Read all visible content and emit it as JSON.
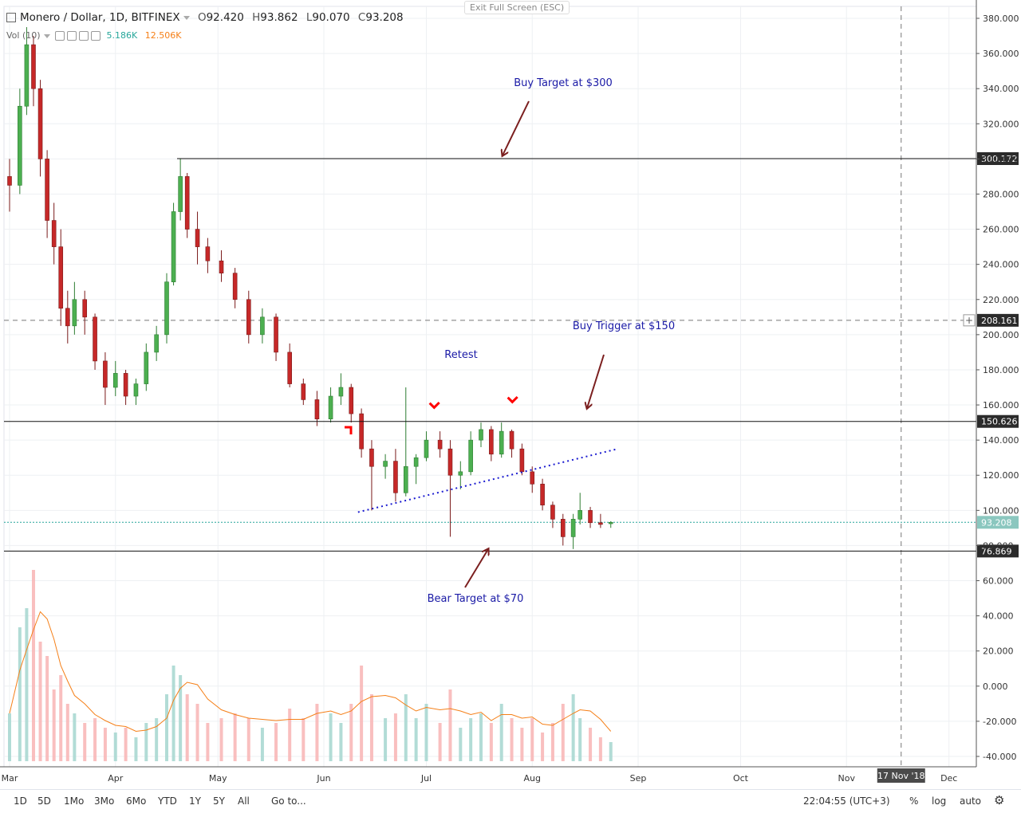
{
  "header": {
    "symbol": "Monero / Dollar, 1D, BITFINEX",
    "open_label": "O",
    "open": "92.420",
    "high_label": "H",
    "high": "93.862",
    "low_label": "L",
    "low": "90.070",
    "close_label": "C",
    "close": "93.208",
    "exit_fullscreen": "Exit Full Screen (ESC)"
  },
  "volume_legend": {
    "label": "Vol (10)",
    "v1": "5.186K",
    "v2": "12.506K"
  },
  "toolbar": {
    "ranges": [
      "1D",
      "5D",
      "1Mo",
      "3Mo",
      "6Mo",
      "YTD",
      "1Y",
      "5Y",
      "All"
    ],
    "goto": "Go to...",
    "time": "22:04:55 (UTC+3)",
    "percent": "%",
    "log": "log",
    "auto": "auto",
    "settings_icon": "gear-icon"
  },
  "colors": {
    "up": "#26a69a",
    "down": "#ef5350",
    "annotation": "#1a1aa6",
    "arrow": "#7b1f1f",
    "marker": "#ff0000",
    "volma": "#f57f17"
  },
  "chart_data": {
    "type": "candlestick",
    "title": "Monero / Dollar, 1D, BITFINEX",
    "ylim": [
      -40,
      380
    ],
    "y_ticks": [
      "380.000",
      "360.000",
      "340.000",
      "320.000",
      "300.000",
      "280.000",
      "260.000",
      "240.000",
      "220.000",
      "200.000",
      "180.000",
      "160.000",
      "140.000",
      "120.000",
      "100.000",
      "80.000",
      "60.000",
      "40.000",
      "20.000",
      "0.000",
      "-20.000",
      "-40.000"
    ],
    "x_ticks": [
      "Mar",
      "Apr",
      "May",
      "Jun",
      "Jul",
      "Aug",
      "Sep",
      "Oct",
      "Nov",
      "Dec"
    ],
    "cursor_date": "17 Nov '18",
    "price_labels": [
      {
        "value": 300.172,
        "text": "300.172",
        "style": "dark"
      },
      {
        "value": 208.161,
        "text": "208.161",
        "style": "dark"
      },
      {
        "value": 150.626,
        "text": "150.626",
        "style": "dark"
      },
      {
        "value": 93.208,
        "text": "93.208",
        "style": "green"
      },
      {
        "value": 76.869,
        "text": "76.869",
        "style": "dark"
      }
    ],
    "horizontal_levels": [
      300.172,
      150.626,
      76.869
    ],
    "crosshair_price": 208.161,
    "last_price": 93.208,
    "annotations": [
      {
        "text": "Buy Target at $300"
      },
      {
        "text": "Buy Trigger at $150"
      },
      {
        "text": "Retest"
      },
      {
        "text": "Bear Target at $70"
      }
    ],
    "trendline": {
      "start": [
        "2018-06-11",
        99
      ],
      "end": [
        "2018-08-26",
        135
      ]
    },
    "series": [
      {
        "date": "2018-03-01",
        "o": 290,
        "h": 300,
        "l": 270,
        "c": 285
      },
      {
        "date": "2018-03-04",
        "o": 285,
        "h": 340,
        "l": 280,
        "c": 330
      },
      {
        "date": "2018-03-06",
        "o": 330,
        "h": 375,
        "l": 325,
        "c": 365
      },
      {
        "date": "2018-03-08",
        "o": 365,
        "h": 370,
        "l": 330,
        "c": 340
      },
      {
        "date": "2018-03-10",
        "o": 340,
        "h": 345,
        "l": 290,
        "c": 300
      },
      {
        "date": "2018-03-12",
        "o": 300,
        "h": 305,
        "l": 255,
        "c": 265
      },
      {
        "date": "2018-03-14",
        "o": 265,
        "h": 275,
        "l": 240,
        "c": 250
      },
      {
        "date": "2018-03-16",
        "o": 250,
        "h": 260,
        "l": 205,
        "c": 215
      },
      {
        "date": "2018-03-18",
        "o": 215,
        "h": 225,
        "l": 195,
        "c": 205
      },
      {
        "date": "2018-03-20",
        "o": 205,
        "h": 230,
        "l": 200,
        "c": 220
      },
      {
        "date": "2018-03-23",
        "o": 220,
        "h": 225,
        "l": 200,
        "c": 210
      },
      {
        "date": "2018-03-26",
        "o": 210,
        "h": 212,
        "l": 180,
        "c": 185
      },
      {
        "date": "2018-03-29",
        "o": 185,
        "h": 190,
        "l": 160,
        "c": 170
      },
      {
        "date": "2018-04-01",
        "o": 170,
        "h": 185,
        "l": 165,
        "c": 178
      },
      {
        "date": "2018-04-04",
        "o": 178,
        "h": 180,
        "l": 160,
        "c": 165
      },
      {
        "date": "2018-04-07",
        "o": 165,
        "h": 175,
        "l": 160,
        "c": 172
      },
      {
        "date": "2018-04-10",
        "o": 172,
        "h": 195,
        "l": 168,
        "c": 190
      },
      {
        "date": "2018-04-13",
        "o": 190,
        "h": 205,
        "l": 185,
        "c": 200
      },
      {
        "date": "2018-04-16",
        "o": 200,
        "h": 235,
        "l": 195,
        "c": 230
      },
      {
        "date": "2018-04-18",
        "o": 230,
        "h": 275,
        "l": 228,
        "c": 270
      },
      {
        "date": "2018-04-20",
        "o": 270,
        "h": 300,
        "l": 265,
        "c": 290
      },
      {
        "date": "2018-04-22",
        "o": 290,
        "h": 292,
        "l": 255,
        "c": 260
      },
      {
        "date": "2018-04-25",
        "o": 260,
        "h": 270,
        "l": 240,
        "c": 250
      },
      {
        "date": "2018-04-28",
        "o": 250,
        "h": 255,
        "l": 235,
        "c": 242
      },
      {
        "date": "2018-05-02",
        "o": 242,
        "h": 248,
        "l": 230,
        "c": 235
      },
      {
        "date": "2018-05-06",
        "o": 235,
        "h": 238,
        "l": 215,
        "c": 220
      },
      {
        "date": "2018-05-10",
        "o": 220,
        "h": 225,
        "l": 195,
        "c": 200
      },
      {
        "date": "2018-05-14",
        "o": 200,
        "h": 215,
        "l": 195,
        "c": 210
      },
      {
        "date": "2018-05-18",
        "o": 210,
        "h": 212,
        "l": 185,
        "c": 190
      },
      {
        "date": "2018-05-22",
        "o": 190,
        "h": 195,
        "l": 170,
        "c": 172
      },
      {
        "date": "2018-05-26",
        "o": 172,
        "h": 175,
        "l": 160,
        "c": 163
      },
      {
        "date": "2018-05-30",
        "o": 163,
        "h": 168,
        "l": 148,
        "c": 152
      },
      {
        "date": "2018-06-03",
        "o": 152,
        "h": 170,
        "l": 150,
        "c": 165
      },
      {
        "date": "2018-06-06",
        "o": 165,
        "h": 178,
        "l": 160,
        "c": 170
      },
      {
        "date": "2018-06-09",
        "o": 170,
        "h": 172,
        "l": 150,
        "c": 155
      },
      {
        "date": "2018-06-12",
        "o": 155,
        "h": 158,
        "l": 130,
        "c": 135
      },
      {
        "date": "2018-06-15",
        "o": 135,
        "h": 140,
        "l": 100,
        "c": 125
      },
      {
        "date": "2018-06-19",
        "o": 125,
        "h": 132,
        "l": 118,
        "c": 128
      },
      {
        "date": "2018-06-22",
        "o": 128,
        "h": 135,
        "l": 105,
        "c": 110
      },
      {
        "date": "2018-06-25",
        "o": 110,
        "h": 170,
        "l": 108,
        "c": 125
      },
      {
        "date": "2018-06-28",
        "o": 125,
        "h": 132,
        "l": 115,
        "c": 130
      },
      {
        "date": "2018-07-01",
        "o": 130,
        "h": 145,
        "l": 128,
        "c": 140
      },
      {
        "date": "2018-07-05",
        "o": 140,
        "h": 145,
        "l": 130,
        "c": 135
      },
      {
        "date": "2018-07-08",
        "o": 135,
        "h": 140,
        "l": 85,
        "c": 120
      },
      {
        "date": "2018-07-11",
        "o": 120,
        "h": 128,
        "l": 112,
        "c": 122
      },
      {
        "date": "2018-07-14",
        "o": 122,
        "h": 145,
        "l": 120,
        "c": 140
      },
      {
        "date": "2018-07-17",
        "o": 140,
        "h": 150,
        "l": 136,
        "c": 146
      },
      {
        "date": "2018-07-20",
        "o": 146,
        "h": 148,
        "l": 128,
        "c": 132
      },
      {
        "date": "2018-07-23",
        "o": 132,
        "h": 150,
        "l": 130,
        "c": 145
      },
      {
        "date": "2018-07-26",
        "o": 145,
        "h": 146,
        "l": 130,
        "c": 135
      },
      {
        "date": "2018-07-29",
        "o": 135,
        "h": 138,
        "l": 120,
        "c": 122
      },
      {
        "date": "2018-08-01",
        "o": 122,
        "h": 125,
        "l": 110,
        "c": 115
      },
      {
        "date": "2018-08-04",
        "o": 115,
        "h": 118,
        "l": 100,
        "c": 103
      },
      {
        "date": "2018-08-07",
        "o": 103,
        "h": 105,
        "l": 90,
        "c": 95
      },
      {
        "date": "2018-08-10",
        "o": 95,
        "h": 98,
        "l": 80,
        "c": 85
      },
      {
        "date": "2018-08-13",
        "o": 85,
        "h": 98,
        "l": 78,
        "c": 95
      },
      {
        "date": "2018-08-15",
        "o": 95,
        "h": 110,
        "l": 92,
        "c": 100
      },
      {
        "date": "2018-08-18",
        "o": 100,
        "h": 102,
        "l": 90,
        "c": 93
      },
      {
        "date": "2018-08-21",
        "o": 93,
        "h": 98,
        "l": 90,
        "c": 92
      },
      {
        "date": "2018-08-24",
        "o": 92.42,
        "h": 93.862,
        "l": 90.07,
        "c": 93.208
      }
    ],
    "volume": [
      {
        "date": "2018-03-01",
        "v": 10,
        "up": true
      },
      {
        "date": "2018-03-04",
        "v": 28,
        "up": true
      },
      {
        "date": "2018-03-06",
        "v": 32,
        "up": true
      },
      {
        "date": "2018-03-08",
        "v": 40,
        "up": false
      },
      {
        "date": "2018-03-10",
        "v": 25,
        "up": false
      },
      {
        "date": "2018-03-12",
        "v": 22,
        "up": false
      },
      {
        "date": "2018-03-14",
        "v": 15,
        "up": false
      },
      {
        "date": "2018-03-16",
        "v": 18,
        "up": false
      },
      {
        "date": "2018-03-18",
        "v": 12,
        "up": false
      },
      {
        "date": "2018-03-20",
        "v": 10,
        "up": true
      },
      {
        "date": "2018-03-23",
        "v": 8,
        "up": false
      },
      {
        "date": "2018-03-26",
        "v": 9,
        "up": false
      },
      {
        "date": "2018-03-29",
        "v": 7,
        "up": false
      },
      {
        "date": "2018-04-01",
        "v": 6,
        "up": true
      },
      {
        "date": "2018-04-04",
        "v": 7,
        "up": false
      },
      {
        "date": "2018-04-07",
        "v": 5,
        "up": true
      },
      {
        "date": "2018-04-10",
        "v": 8,
        "up": true
      },
      {
        "date": "2018-04-13",
        "v": 9,
        "up": true
      },
      {
        "date": "2018-04-16",
        "v": 14,
        "up": true
      },
      {
        "date": "2018-04-18",
        "v": 20,
        "up": true
      },
      {
        "date": "2018-04-20",
        "v": 18,
        "up": true
      },
      {
        "date": "2018-04-22",
        "v": 14,
        "up": false
      },
      {
        "date": "2018-04-25",
        "v": 12,
        "up": false
      },
      {
        "date": "2018-04-28",
        "v": 8,
        "up": false
      },
      {
        "date": "2018-05-02",
        "v": 9,
        "up": false
      },
      {
        "date": "2018-05-06",
        "v": 10,
        "up": false
      },
      {
        "date": "2018-05-10",
        "v": 9,
        "up": false
      },
      {
        "date": "2018-05-14",
        "v": 7,
        "up": true
      },
      {
        "date": "2018-05-18",
        "v": 8,
        "up": false
      },
      {
        "date": "2018-05-22",
        "v": 11,
        "up": false
      },
      {
        "date": "2018-05-26",
        "v": 9,
        "up": false
      },
      {
        "date": "2018-05-30",
        "v": 12,
        "up": false
      },
      {
        "date": "2018-06-03",
        "v": 10,
        "up": true
      },
      {
        "date": "2018-06-06",
        "v": 8,
        "up": true
      },
      {
        "date": "2018-06-09",
        "v": 12,
        "up": false
      },
      {
        "date": "2018-06-12",
        "v": 20,
        "up": false
      },
      {
        "date": "2018-06-15",
        "v": 14,
        "up": false
      },
      {
        "date": "2018-06-19",
        "v": 9,
        "up": true
      },
      {
        "date": "2018-06-22",
        "v": 10,
        "up": false
      },
      {
        "date": "2018-06-25",
        "v": 14,
        "up": true
      },
      {
        "date": "2018-06-28",
        "v": 9,
        "up": true
      },
      {
        "date": "2018-07-01",
        "v": 12,
        "up": true
      },
      {
        "date": "2018-07-05",
        "v": 8,
        "up": false
      },
      {
        "date": "2018-07-08",
        "v": 15,
        "up": false
      },
      {
        "date": "2018-07-11",
        "v": 7,
        "up": true
      },
      {
        "date": "2018-07-14",
        "v": 9,
        "up": true
      },
      {
        "date": "2018-07-17",
        "v": 10,
        "up": true
      },
      {
        "date": "2018-07-20",
        "v": 8,
        "up": false
      },
      {
        "date": "2018-07-23",
        "v": 12,
        "up": true
      },
      {
        "date": "2018-07-26",
        "v": 9,
        "up": false
      },
      {
        "date": "2018-07-29",
        "v": 7,
        "up": false
      },
      {
        "date": "2018-08-01",
        "v": 9,
        "up": false
      },
      {
        "date": "2018-08-04",
        "v": 6,
        "up": false
      },
      {
        "date": "2018-08-07",
        "v": 8,
        "up": false
      },
      {
        "date": "2018-08-10",
        "v": 12,
        "up": false
      },
      {
        "date": "2018-08-13",
        "v": 14,
        "up": true
      },
      {
        "date": "2018-08-15",
        "v": 9,
        "up": true
      },
      {
        "date": "2018-08-18",
        "v": 7,
        "up": false
      },
      {
        "date": "2018-08-21",
        "v": 5,
        "up": false
      },
      {
        "date": "2018-08-24",
        "v": 4,
        "up": true
      }
    ]
  }
}
